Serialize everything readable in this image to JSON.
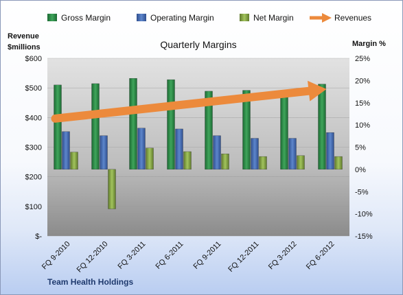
{
  "chart_data": {
    "type": "bar",
    "title": "Quarterly Margins",
    "company": "Team Health Holdings",
    "categories": [
      "FQ 9-2010",
      "FQ 12-2010",
      "FQ 3-2011",
      "FQ 6-2011",
      "FQ 9-2011",
      "FQ 12-2011",
      "FQ 3-2012",
      "FQ 6-2012"
    ],
    "series": [
      {
        "name": "Gross Margin",
        "type": "bar",
        "axis": "right",
        "color": "#2f8f4a",
        "values": [
          19,
          19.3,
          20.5,
          20.2,
          17.6,
          17.8,
          17.6,
          19.2
        ]
      },
      {
        "name": "Operating Margin",
        "type": "bar",
        "axis": "right",
        "color": "#4a73b8",
        "values": [
          8.5,
          7.6,
          9.3,
          9.1,
          7.6,
          7,
          7,
          8.3
        ]
      },
      {
        "name": "Net Margin",
        "type": "bar",
        "axis": "right",
        "color": "#8fb04a",
        "values": [
          3.9,
          -8.9,
          4.8,
          4,
          3.5,
          2.9,
          3.1,
          2.9
        ]
      },
      {
        "name": "Revenues",
        "type": "arrow",
        "axis": "left",
        "color": "#ec8a3c",
        "values": [
          400,
          418,
          428,
          445,
          458,
          470,
          488,
          510
        ]
      }
    ],
    "y_left": {
      "label": "Revenue\n$millions",
      "ticks": [
        "$-",
        "$100",
        "$200",
        "$300",
        "$400",
        "$500",
        "$600"
      ],
      "range": [
        0,
        600
      ]
    },
    "y_right": {
      "label": "Margin %",
      "ticks": [
        "-15%",
        "-10%",
        "-5%",
        "0%",
        "5%",
        "10%",
        "15%",
        "20%",
        "25%"
      ],
      "range": [
        -15,
        25
      ]
    },
    "legend_position": "top",
    "plot_area_colors": {
      "top": "#d7d7d7",
      "bottom": "#8a8a8a"
    }
  }
}
